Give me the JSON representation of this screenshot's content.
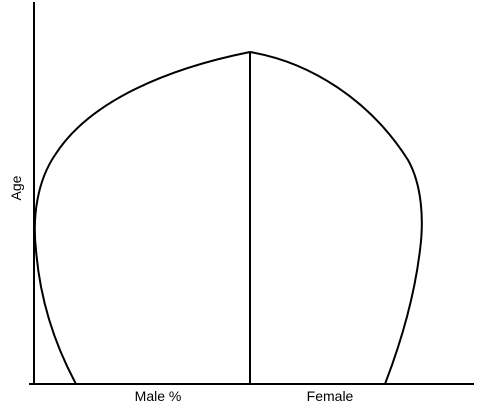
{
  "diagram": {
    "y_axis_label": "Age",
    "x_axis_labels": {
      "left": "Male %",
      "right": "Female"
    },
    "colors": {
      "line": "#000000",
      "background": "#ffffff"
    }
  }
}
